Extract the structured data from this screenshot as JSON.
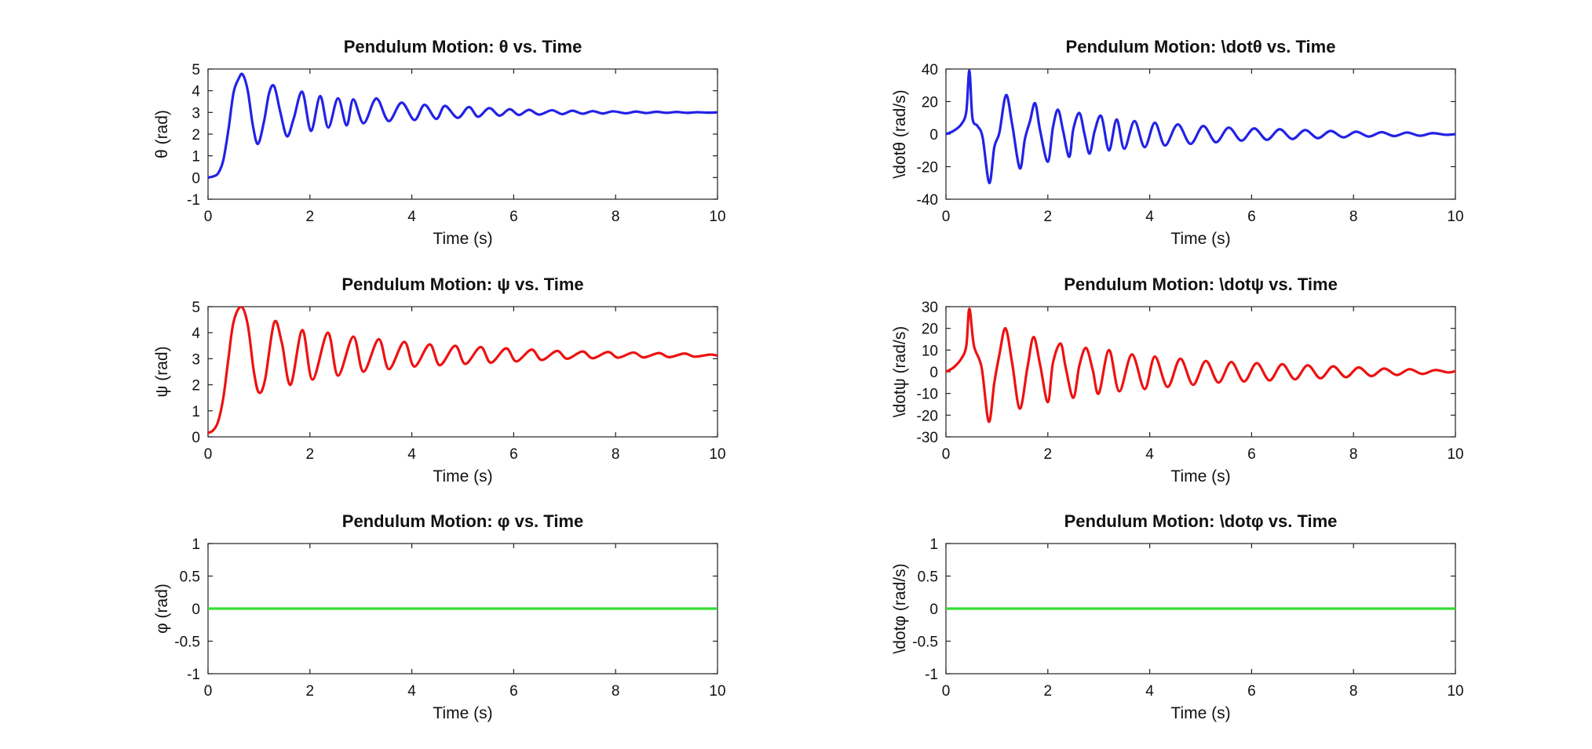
{
  "chart_data": [
    {
      "type": "line",
      "title": "Pendulum Motion: θ vs. Time",
      "xlabel": "Time (s)",
      "ylabel": "θ (rad)",
      "xlim": [
        0,
        10
      ],
      "ylim": [
        -1,
        5
      ],
      "xticks": [
        "0",
        "2",
        "4",
        "6",
        "8",
        "10"
      ],
      "yticks": [
        "-1",
        "0",
        "1",
        "2",
        "3",
        "4",
        "5"
      ],
      "color": "#2222e6",
      "series": [
        {
          "x": [
            0,
            0.1,
            0.2,
            0.3,
            0.4,
            0.5,
            0.6,
            0.68,
            0.78,
            0.88,
            0.98,
            1.1,
            1.2,
            1.3,
            1.42,
            1.55,
            1.68,
            1.85,
            2.02,
            2.2,
            2.36,
            2.55,
            2.72,
            2.85,
            3.05,
            3.25,
            3.35,
            3.55,
            3.8,
            4.05,
            4.25,
            4.48,
            4.65,
            4.9,
            5.12,
            5.3,
            5.52,
            5.72,
            5.92,
            6.1,
            6.3,
            6.5,
            6.75,
            6.95,
            7.15,
            7.35,
            7.55,
            7.75,
            7.95,
            8.2,
            8.4,
            8.6,
            8.8,
            9.0,
            9.2,
            9.4,
            9.6,
            9.8,
            10.0
          ],
          "y": [
            0,
            0.05,
            0.2,
            0.8,
            2.2,
            3.9,
            4.55,
            4.75,
            4.0,
            2.4,
            1.55,
            2.6,
            3.9,
            4.2,
            3.0,
            1.9,
            2.7,
            3.95,
            2.15,
            3.75,
            2.3,
            3.65,
            2.4,
            3.6,
            2.5,
            3.5,
            3.55,
            2.6,
            3.45,
            2.65,
            3.35,
            2.7,
            3.3,
            2.75,
            3.25,
            2.8,
            3.2,
            2.85,
            3.15,
            2.88,
            3.12,
            2.9,
            3.1,
            2.92,
            3.08,
            2.94,
            3.06,
            2.95,
            3.05,
            2.96,
            3.04,
            2.97,
            3.03,
            2.98,
            3.02,
            2.98,
            3.01,
            2.99,
            3.0
          ]
        }
      ]
    },
    {
      "type": "line",
      "title": "Pendulum Motion: \\dotθ vs. Time",
      "xlabel": "Time (s)",
      "ylabel": "\\dotθ (rad/s)",
      "xlim": [
        0,
        10
      ],
      "ylim": [
        -40,
        40
      ],
      "xticks": [
        "0",
        "2",
        "4",
        "6",
        "8",
        "10"
      ],
      "yticks": [
        "-40",
        "-20",
        "0",
        "20",
        "40"
      ],
      "color": "#2222e6",
      "series": [
        {
          "x": [
            0,
            0.15,
            0.3,
            0.4,
            0.46,
            0.52,
            0.62,
            0.72,
            0.85,
            0.95,
            1.05,
            1.18,
            1.3,
            1.45,
            1.55,
            1.65,
            1.75,
            1.85,
            2.0,
            2.1,
            2.2,
            2.3,
            2.42,
            2.5,
            2.62,
            2.72,
            2.82,
            2.92,
            3.05,
            3.2,
            3.35,
            3.5,
            3.7,
            3.9,
            4.1,
            4.3,
            4.55,
            4.8,
            5.05,
            5.3,
            5.55,
            5.8,
            6.05,
            6.3,
            6.55,
            6.8,
            7.05,
            7.3,
            7.55,
            7.8,
            8.05,
            8.3,
            8.55,
            8.8,
            9.05,
            9.3,
            9.55,
            9.8,
            10.0
          ],
          "y": [
            0,
            2,
            6,
            14,
            39,
            10,
            5,
            -2,
            -30,
            -8,
            1,
            24,
            6,
            -21,
            -3,
            8,
            19,
            2,
            -17,
            4,
            15,
            2,
            -14,
            3,
            13,
            0,
            -12,
            2,
            11,
            -10,
            9,
            -9,
            8,
            -8,
            7,
            -7,
            6,
            -6,
            5,
            -5,
            4,
            -4,
            3.5,
            -3.5,
            3,
            -3,
            2.5,
            -2.5,
            2,
            -2,
            1.5,
            -1.5,
            1.2,
            -1.2,
            1,
            -1,
            0.6,
            -0.4,
            0
          ]
        }
      ]
    },
    {
      "type": "line",
      "title": "Pendulum Motion: ψ vs. Time",
      "xlabel": "Time (s)",
      "ylabel": "ψ (rad)",
      "xlim": [
        0,
        10
      ],
      "ylim": [
        0,
        5
      ],
      "xticks": [
        "0",
        "2",
        "4",
        "6",
        "8",
        "10"
      ],
      "yticks": [
        "0",
        "1",
        "2",
        "3",
        "4",
        "5"
      ],
      "color": "#ee1111",
      "series": [
        {
          "x": [
            0,
            0.1,
            0.2,
            0.3,
            0.4,
            0.5,
            0.65,
            0.78,
            0.9,
            1.0,
            1.12,
            1.3,
            1.45,
            1.62,
            1.85,
            2.05,
            2.35,
            2.55,
            2.85,
            3.05,
            3.35,
            3.55,
            3.85,
            4.05,
            4.35,
            4.55,
            4.85,
            5.05,
            5.35,
            5.55,
            5.85,
            6.05,
            6.35,
            6.55,
            6.85,
            7.05,
            7.35,
            7.55,
            7.85,
            8.05,
            8.35,
            8.55,
            8.85,
            9.05,
            9.35,
            9.55,
            9.85,
            10.0
          ],
          "y": [
            0.15,
            0.25,
            0.6,
            1.5,
            3.0,
            4.4,
            5.0,
            4.3,
            2.5,
            1.7,
            2.2,
            4.4,
            3.6,
            2.0,
            4.1,
            2.2,
            4.0,
            2.35,
            3.85,
            2.5,
            3.75,
            2.6,
            3.65,
            2.7,
            3.55,
            2.75,
            3.5,
            2.8,
            3.45,
            2.85,
            3.4,
            2.9,
            3.35,
            2.95,
            3.3,
            3.0,
            3.28,
            3.02,
            3.26,
            3.04,
            3.24,
            3.05,
            3.22,
            3.06,
            3.2,
            3.08,
            3.16,
            3.12
          ]
        }
      ]
    },
    {
      "type": "line",
      "title": "Pendulum Motion: \\dotψ vs. Time",
      "xlabel": "Time (s)",
      "ylabel": "\\dotψ (rad/s)",
      "xlim": [
        0,
        10
      ],
      "ylim": [
        -30,
        30
      ],
      "xticks": [
        "0",
        "2",
        "4",
        "6",
        "8",
        "10"
      ],
      "yticks": [
        "-30",
        "-20",
        "-10",
        "0",
        "10",
        "20",
        "30"
      ],
      "color": "#ee1111",
      "series": [
        {
          "x": [
            0,
            0.15,
            0.3,
            0.4,
            0.46,
            0.55,
            0.7,
            0.84,
            0.95,
            1.05,
            1.17,
            1.3,
            1.45,
            1.6,
            1.72,
            1.85,
            2.0,
            2.1,
            2.25,
            2.35,
            2.5,
            2.62,
            2.75,
            2.88,
            3.0,
            3.2,
            3.4,
            3.65,
            3.9,
            4.1,
            4.35,
            4.6,
            4.85,
            5.1,
            5.35,
            5.6,
            5.85,
            6.1,
            6.35,
            6.6,
            6.85,
            7.1,
            7.35,
            7.6,
            7.85,
            8.1,
            8.35,
            8.6,
            8.85,
            9.1,
            9.35,
            9.6,
            9.85,
            10.0
          ],
          "y": [
            0,
            2,
            6,
            12,
            29,
            12,
            2,
            -23,
            -5,
            8,
            20,
            4,
            -17,
            2,
            16,
            3,
            -14,
            4,
            13,
            2,
            -12,
            3,
            11,
            1,
            -10,
            10,
            -9,
            8,
            -8,
            7,
            -7,
            6,
            -6,
            5,
            -5,
            4.5,
            -4.5,
            4,
            -4,
            3.5,
            -3.5,
            3,
            -3,
            2.5,
            -2.5,
            2,
            -2,
            1.5,
            -1.5,
            1.2,
            -1,
            0.8,
            -0.3,
            0.3
          ]
        }
      ]
    },
    {
      "type": "line",
      "title": "Pendulum Motion: φ vs. Time",
      "xlabel": "Time (s)",
      "ylabel": "φ (rad)",
      "xlim": [
        0,
        10
      ],
      "ylim": [
        -1,
        1
      ],
      "xticks": [
        "0",
        "2",
        "4",
        "6",
        "8",
        "10"
      ],
      "yticks": [
        "-1",
        "-0.5",
        "0",
        "0.5",
        "1"
      ],
      "color": "#33dd33",
      "series": [
        {
          "x": [
            0,
            10
          ],
          "y": [
            0,
            0
          ]
        }
      ]
    },
    {
      "type": "line",
      "title": "Pendulum Motion: \\dotφ vs. Time",
      "xlabel": "Time (s)",
      "ylabel": "\\dotφ (rad/s)",
      "xlim": [
        0,
        10
      ],
      "ylim": [
        -1,
        1
      ],
      "xticks": [
        "0",
        "2",
        "4",
        "6",
        "8",
        "10"
      ],
      "yticks": [
        "-1",
        "-0.5",
        "0",
        "0.5",
        "1"
      ],
      "color": "#33dd33",
      "series": [
        {
          "x": [
            0,
            10
          ],
          "y": [
            0,
            0
          ]
        }
      ]
    }
  ]
}
